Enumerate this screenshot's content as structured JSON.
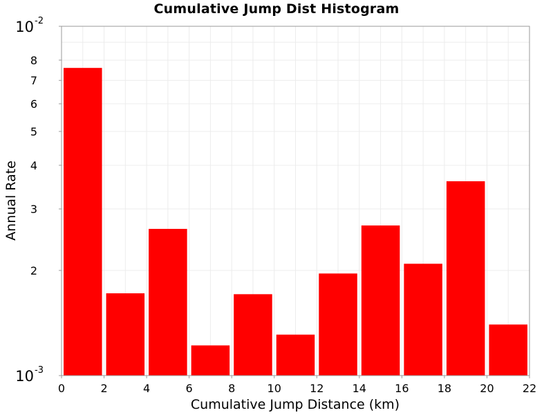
{
  "chart_data": {
    "type": "bar",
    "title": "Cumulative Jump Dist Histogram",
    "xlabel": "Cumulative Jump Distance (km)",
    "ylabel": "Annual Rate",
    "xlim": [
      0,
      22
    ],
    "ylim": [
      0.001,
      0.01
    ],
    "y_scale": "log",
    "grid": true,
    "bar_color": "#ff0000",
    "x_ticks": [
      "0",
      "2",
      "4",
      "6",
      "8",
      "10",
      "12",
      "14",
      "16",
      "18",
      "20",
      "22"
    ],
    "y_major_ticks": [
      {
        "value": 0.001,
        "base": "10",
        "exp": "-3"
      },
      {
        "value": 0.01,
        "base": "10",
        "exp": "-2"
      }
    ],
    "y_minor_ticks": [
      {
        "value": 0.002,
        "label": "2"
      },
      {
        "value": 0.003,
        "label": "3"
      },
      {
        "value": 0.004,
        "label": "4"
      },
      {
        "value": 0.005,
        "label": "5"
      },
      {
        "value": 0.006,
        "label": "6"
      },
      {
        "value": 0.007,
        "label": "7"
      },
      {
        "value": 0.008,
        "label": "8"
      }
    ],
    "bins": [
      {
        "x0": 0,
        "x1": 2,
        "value": 0.0076
      },
      {
        "x0": 2,
        "x1": 4,
        "value": 0.00172
      },
      {
        "x0": 4,
        "x1": 6,
        "value": 0.00263
      },
      {
        "x0": 6,
        "x1": 8,
        "value": 0.00122
      },
      {
        "x0": 8,
        "x1": 10,
        "value": 0.00171
      },
      {
        "x0": 10,
        "x1": 12,
        "value": 0.00131
      },
      {
        "x0": 12,
        "x1": 14,
        "value": 0.00196
      },
      {
        "x0": 14,
        "x1": 16,
        "value": 0.00269
      },
      {
        "x0": 16,
        "x1": 18,
        "value": 0.00209
      },
      {
        "x0": 18,
        "x1": 20,
        "value": 0.0036
      },
      {
        "x0": 20,
        "x1": 22,
        "value": 0.0014
      }
    ]
  }
}
